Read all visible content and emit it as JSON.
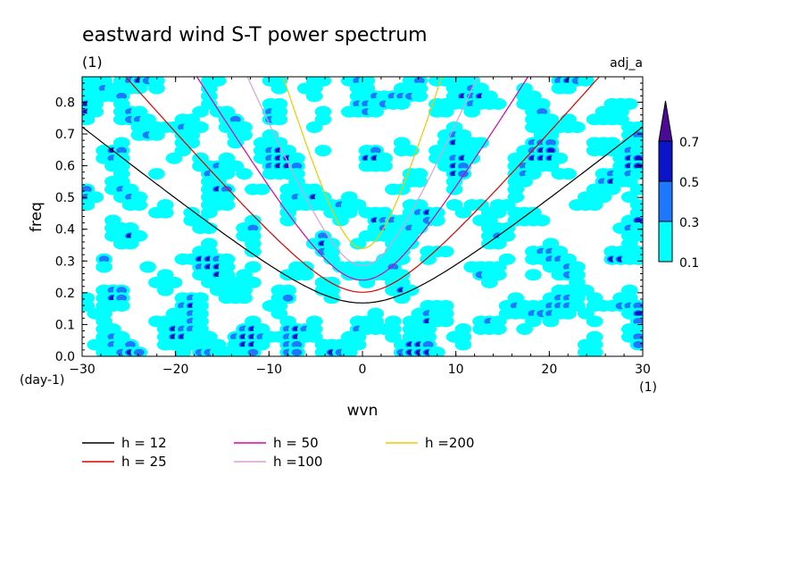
{
  "chart_data": {
    "type": "heatmap",
    "title": "eastward wind S-T power spectrum",
    "subtitle_left": "(1)",
    "subtitle_right": "adj_a",
    "xlabel": "wvn",
    "ylabel": "freq",
    "x_unit": "(1)",
    "y_unit": "(day-1)",
    "xlim": [
      -30,
      30
    ],
    "ylim": [
      0,
      0.88
    ],
    "x_ticks": [
      -30,
      -20,
      -10,
      0,
      10,
      20,
      30
    ],
    "x_tick_labels": [
      "−30",
      "−20",
      "−10",
      "0",
      "10",
      "20",
      "30"
    ],
    "y_ticks": [
      0,
      0.1,
      0.2,
      0.3,
      0.4,
      0.5,
      0.6,
      0.7,
      0.8
    ],
    "y_tick_labels": [
      "0.0",
      "0.1",
      "0.2",
      "0.3",
      "0.4",
      "0.5",
      "0.6",
      "0.7",
      "0.8"
    ],
    "grid": false,
    "colorbar": {
      "levels": [
        0.1,
        0.3,
        0.5,
        0.7
      ],
      "labels": [
        "0.1",
        "0.3",
        "0.5",
        "0.7"
      ],
      "colors": [
        "#00ffff",
        "#1e78ff",
        "#0a14c8",
        "#4b0a96"
      ],
      "extend": "max"
    },
    "field": {
      "description_levels": "filled contours of normalized power, random patches across the domain",
      "seed": 7
    },
    "dispersion_curves": [
      {
        "name": "h = 12",
        "h": 12,
        "color": "#000000"
      },
      {
        "name": "h = 25",
        "h": 25,
        "color": "#dd0000"
      },
      {
        "name": "h = 50",
        "h": 50,
        "color": "#dd00aa"
      },
      {
        "name": "h =100",
        "h": 100,
        "color": "#d8a0d8"
      },
      {
        "name": "h =200",
        "h": 200,
        "color": "#f0c800"
      }
    ]
  }
}
